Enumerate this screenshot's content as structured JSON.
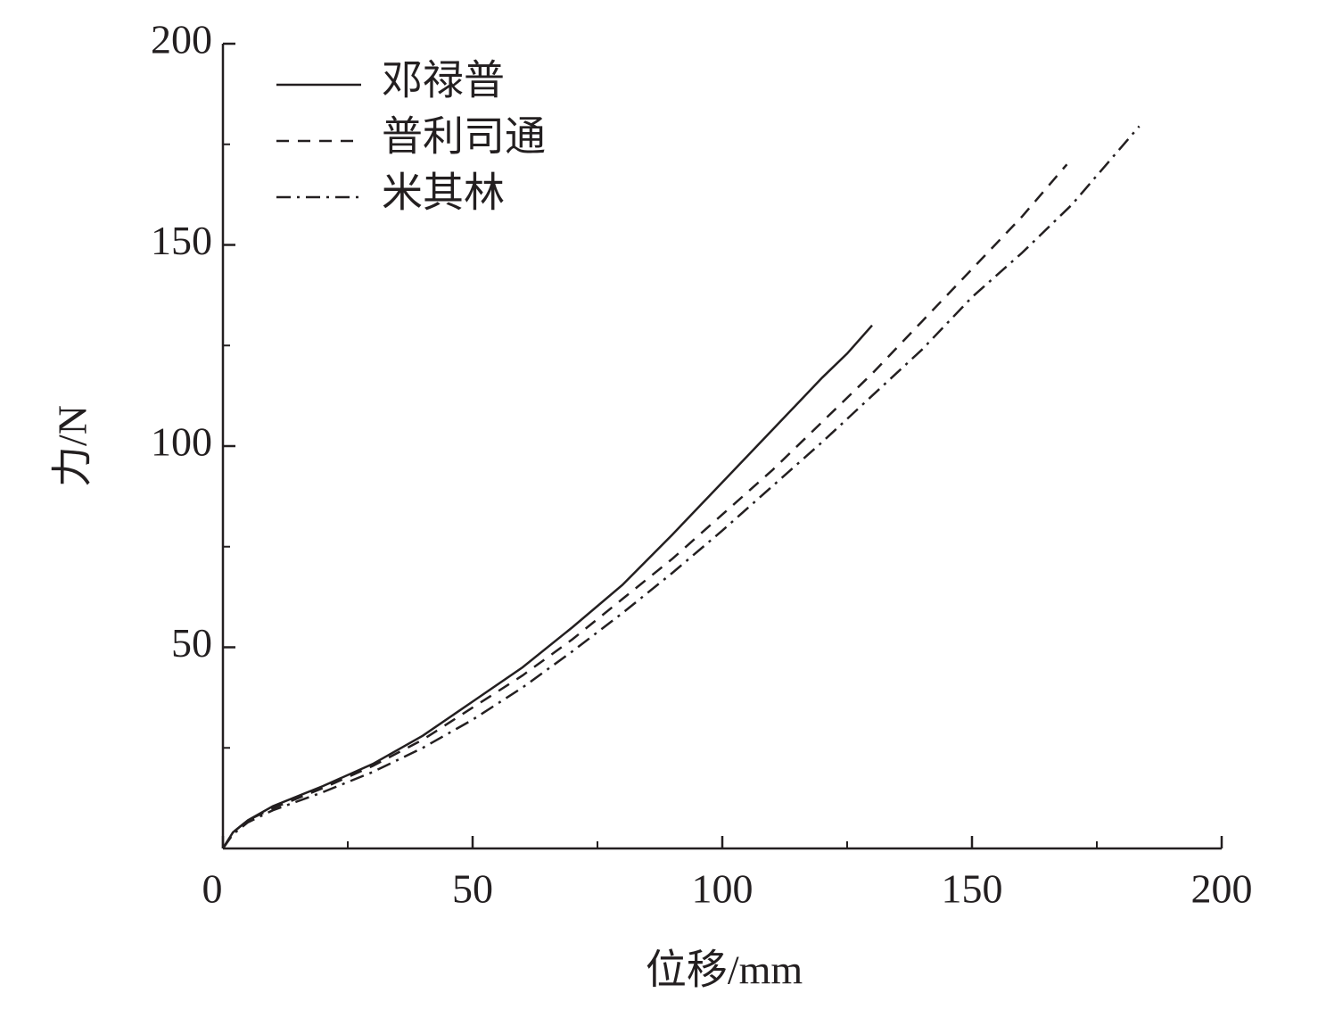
{
  "chart_data": {
    "type": "line",
    "xlabel": "位移/mm",
    "ylabel": "力/N",
    "xlim": [
      0,
      200
    ],
    "ylim": [
      0,
      200
    ],
    "xticks": [
      0,
      50,
      100,
      150,
      200
    ],
    "yticks": [
      50,
      100,
      150,
      200
    ],
    "xminorticks": [
      25,
      75,
      125,
      175
    ],
    "yminorticks": [
      25,
      75,
      125,
      175
    ],
    "legend": "upper left",
    "series": [
      {
        "name": "邓禄普",
        "color": "#231f20",
        "dash": "solid",
        "x": [
          0,
          2,
          5,
          10,
          20,
          30,
          40,
          50,
          60,
          70,
          80,
          90,
          100,
          110,
          120,
          125,
          130
        ],
        "values": [
          0,
          4,
          7,
          10.5,
          15.5,
          21,
          28,
          36.5,
          45,
          55,
          65.5,
          78,
          91,
          104,
          117,
          123,
          130
        ]
      },
      {
        "name": "普利司通",
        "color": "#231f20",
        "dash": "dashed",
        "x": [
          0,
          2,
          5,
          10,
          20,
          30,
          40,
          50,
          60,
          70,
          80,
          90,
          100,
          110,
          120,
          130,
          140,
          150,
          160,
          169
        ],
        "values": [
          0,
          4,
          7,
          10,
          15,
          20.5,
          27,
          35,
          43,
          52,
          62,
          72,
          83,
          94,
          106,
          118,
          131,
          144,
          157,
          170
        ]
      },
      {
        "name": "米其林",
        "color": "#231f20",
        "dash": "dashdot",
        "x": [
          0,
          2,
          5,
          10,
          20,
          30,
          40,
          50,
          60,
          70,
          80,
          90,
          100,
          110,
          120,
          130,
          140,
          150,
          160,
          170,
          183.5
        ],
        "values": [
          0,
          3.5,
          6.5,
          9.5,
          14,
          19,
          25,
          32,
          40,
          49,
          58.5,
          68.5,
          79,
          90,
          101,
          112.5,
          124,
          137,
          148,
          160,
          179.5
        ]
      }
    ]
  }
}
